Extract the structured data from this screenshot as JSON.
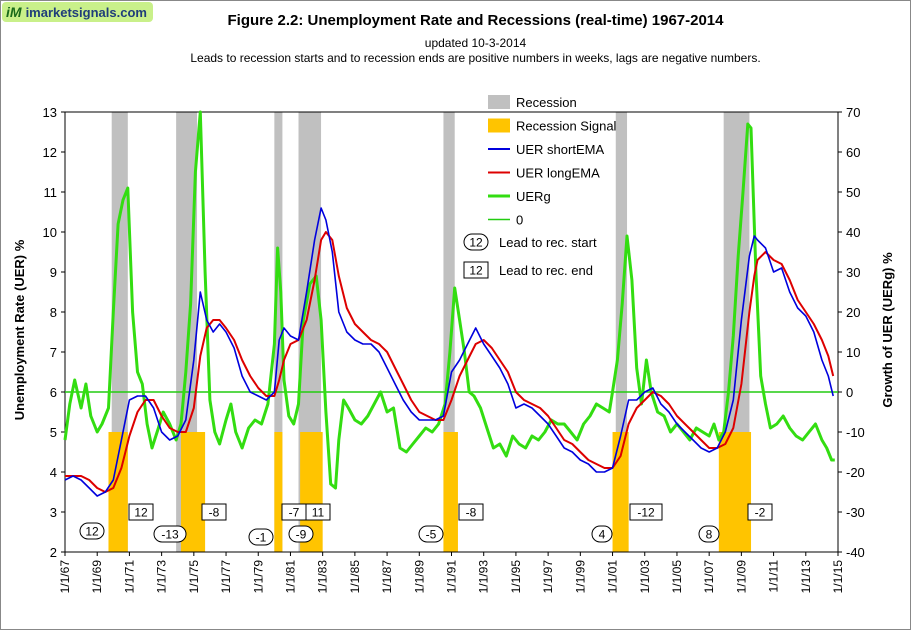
{
  "header": {
    "logo_text": "imarketsignals.com",
    "logo_mark": "iM",
    "title": "Figure 2.2:   Unemployment  Rate and Recessions  (real-time) 1967-2014",
    "subtitle1": "updated 10-3-2014",
    "subtitle2": "Leads to recession starts and to recession ends are positive numbers in weeks, lags are negative numbers."
  },
  "colors": {
    "recession": "#c0c0c0",
    "signal": "#ffc400",
    "short_ema": "#0000dd",
    "long_ema": "#dd0000",
    "uerg": "#33dd11",
    "zero": "#22cc11"
  },
  "chart_data": {
    "type": "line",
    "ylabel": "Unemployment Rate (UER) %",
    "y2label": "Growth of UER (UERg) %",
    "ylim": [
      2,
      13
    ],
    "y2lim": [
      -40,
      70
    ],
    "xlim": [
      1967.0,
      2015.0
    ],
    "yticks": [
      "2",
      "3",
      "4",
      "5",
      "6",
      "7",
      "8",
      "9",
      "10",
      "11",
      "12",
      "13"
    ],
    "y2ticks": [
      "-40",
      "-30",
      "-20",
      "-10",
      "0",
      "10",
      "20",
      "30",
      "40",
      "50",
      "60",
      "70"
    ],
    "xticks": [
      "1/1/67",
      "1/1/69",
      "1/1/71",
      "1/1/73",
      "1/1/75",
      "1/1/77",
      "1/1/79",
      "1/1/81",
      "1/1/83",
      "1/1/85",
      "1/1/87",
      "1/1/89",
      "1/1/91",
      "1/1/93",
      "1/1/95",
      "1/1/97",
      "1/1/99",
      "1/1/01",
      "1/1/03",
      "1/1/05",
      "1/1/07",
      "1/1/09",
      "1/1/11",
      "1/1/13",
      "1/1/15"
    ],
    "legend": [
      "Recession",
      "Recession Signal",
      "UER shortEMA",
      "UER longEMA",
      "UERg",
      "0"
    ],
    "legend_position": "top-center",
    "recessions": [
      [
        1969.9,
        1970.9
      ],
      [
        1973.9,
        1975.2
      ],
      [
        1980.0,
        1980.5
      ],
      [
        1981.5,
        1982.9
      ],
      [
        1990.5,
        1991.2
      ],
      [
        2001.2,
        2001.9
      ],
      [
        2007.9,
        2009.5
      ]
    ],
    "recession_signals": [
      [
        1969.7,
        1970.9
      ],
      [
        1974.2,
        1975.7
      ],
      [
        1980.0,
        1980.5
      ],
      [
        1981.6,
        1983.0
      ],
      [
        1990.5,
        1991.4
      ],
      [
        2001.0,
        2002.0
      ],
      [
        2007.6,
        2009.6
      ]
    ],
    "signal_level": 5.0,
    "uer_short_ema": {
      "x": [
        1967.0,
        1967.5,
        1968.0,
        1968.5,
        1969.0,
        1969.5,
        1970.0,
        1970.5,
        1971.0,
        1971.5,
        1972.0,
        1972.5,
        1973.0,
        1973.5,
        1974.0,
        1974.5,
        1975.0,
        1975.4,
        1975.8,
        1976.2,
        1976.6,
        1977.0,
        1977.5,
        1978.0,
        1978.5,
        1979.0,
        1979.5,
        1980.0,
        1980.3,
        1980.6,
        1981.0,
        1981.5,
        1982.0,
        1982.5,
        1982.9,
        1983.2,
        1983.6,
        1984.0,
        1984.5,
        1985.0,
        1985.5,
        1986.0,
        1986.5,
        1987.0,
        1987.5,
        1988.0,
        1988.5,
        1989.0,
        1989.5,
        1990.0,
        1990.5,
        1991.0,
        1991.5,
        1992.0,
        1992.5,
        1993.0,
        1993.5,
        1994.0,
        1994.5,
        1995.0,
        1995.5,
        1996.0,
        1996.5,
        1997.0,
        1997.5,
        1998.0,
        1998.5,
        1999.0,
        1999.5,
        2000.0,
        2000.5,
        2001.0,
        2001.5,
        2002.0,
        2002.5,
        2003.0,
        2003.5,
        2004.0,
        2004.5,
        2005.0,
        2005.5,
        2006.0,
        2006.5,
        2007.0,
        2007.5,
        2008.0,
        2008.5,
        2009.0,
        2009.5,
        2009.8,
        2010.0,
        2010.5,
        2011.0,
        2011.5,
        2012.0,
        2012.5,
        2013.0,
        2013.5,
        2014.0,
        2014.4,
        2014.7
      ],
      "y": [
        3.8,
        3.9,
        3.8,
        3.6,
        3.4,
        3.5,
        3.8,
        4.8,
        5.8,
        5.9,
        5.9,
        5.6,
        5.0,
        4.8,
        4.9,
        5.3,
        6.8,
        8.5,
        7.8,
        7.5,
        7.7,
        7.5,
        7.1,
        6.4,
        6.0,
        5.9,
        5.8,
        6.0,
        7.3,
        7.6,
        7.4,
        7.3,
        8.5,
        9.8,
        10.6,
        10.3,
        9.5,
        8.0,
        7.5,
        7.3,
        7.2,
        7.2,
        7.0,
        6.6,
        6.2,
        5.8,
        5.5,
        5.3,
        5.3,
        5.3,
        5.4,
        6.5,
        6.8,
        7.2,
        7.6,
        7.2,
        6.9,
        6.6,
        6.2,
        5.6,
        5.7,
        5.6,
        5.4,
        5.2,
        4.9,
        4.6,
        4.5,
        4.3,
        4.2,
        4.0,
        4.0,
        4.1,
        4.9,
        5.8,
        5.8,
        6.0,
        6.1,
        5.7,
        5.5,
        5.2,
        5.0,
        4.8,
        4.6,
        4.5,
        4.6,
        5.0,
        5.8,
        7.8,
        9.4,
        9.9,
        9.8,
        9.6,
        9.0,
        9.1,
        8.5,
        8.1,
        7.9,
        7.5,
        6.8,
        6.4,
        5.9
      ]
    },
    "uer_long_ema": {
      "x": [
        1967.0,
        1967.5,
        1968.0,
        1968.5,
        1969.0,
        1969.5,
        1970.0,
        1970.5,
        1971.0,
        1971.5,
        1972.0,
        1972.5,
        1973.0,
        1973.5,
        1974.0,
        1974.5,
        1975.0,
        1975.4,
        1975.8,
        1976.2,
        1976.6,
        1977.0,
        1977.5,
        1978.0,
        1978.5,
        1979.0,
        1979.5,
        1980.0,
        1980.3,
        1980.6,
        1981.0,
        1981.5,
        1982.0,
        1982.5,
        1982.9,
        1983.2,
        1983.6,
        1984.0,
        1984.5,
        1985.0,
        1985.5,
        1986.0,
        1986.5,
        1987.0,
        1987.5,
        1988.0,
        1988.5,
        1989.0,
        1989.5,
        1990.0,
        1990.5,
        1991.0,
        1991.5,
        1992.0,
        1992.5,
        1993.0,
        1993.5,
        1994.0,
        1994.5,
        1995.0,
        1995.5,
        1996.0,
        1996.5,
        1997.0,
        1997.5,
        1998.0,
        1998.5,
        1999.0,
        1999.5,
        2000.0,
        2000.5,
        2001.0,
        2001.5,
        2002.0,
        2002.5,
        2003.0,
        2003.5,
        2004.0,
        2004.5,
        2005.0,
        2005.5,
        2006.0,
        2006.5,
        2007.0,
        2007.5,
        2008.0,
        2008.5,
        2009.0,
        2009.5,
        2009.8,
        2010.0,
        2010.5,
        2011.0,
        2011.5,
        2012.0,
        2012.5,
        2013.0,
        2013.5,
        2014.0,
        2014.4,
        2014.7
      ],
      "y": [
        3.9,
        3.9,
        3.9,
        3.8,
        3.6,
        3.5,
        3.6,
        4.1,
        4.9,
        5.5,
        5.8,
        5.8,
        5.4,
        5.1,
        5.0,
        5.0,
        5.6,
        6.9,
        7.6,
        7.8,
        7.8,
        7.6,
        7.3,
        6.8,
        6.4,
        6.1,
        5.9,
        5.9,
        6.3,
        6.8,
        7.2,
        7.3,
        7.8,
        8.8,
        9.8,
        10.0,
        9.8,
        8.9,
        8.1,
        7.7,
        7.5,
        7.3,
        7.2,
        7.0,
        6.6,
        6.2,
        5.8,
        5.5,
        5.4,
        5.3,
        5.3,
        5.8,
        6.4,
        6.8,
        7.2,
        7.3,
        7.1,
        6.8,
        6.5,
        6.0,
        5.8,
        5.7,
        5.6,
        5.4,
        5.1,
        4.8,
        4.7,
        4.5,
        4.3,
        4.2,
        4.1,
        4.1,
        4.4,
        5.2,
        5.6,
        5.8,
        6.0,
        5.9,
        5.7,
        5.4,
        5.2,
        5.0,
        4.8,
        4.6,
        4.6,
        4.7,
        5.1,
        6.2,
        8.0,
        8.9,
        9.3,
        9.5,
        9.3,
        9.2,
        8.8,
        8.3,
        8.0,
        7.7,
        7.3,
        6.9,
        6.4
      ]
    },
    "uerg": {
      "x": [
        1967.0,
        1967.3,
        1967.6,
        1968.0,
        1968.3,
        1968.6,
        1969.0,
        1969.3,
        1969.7,
        1970.0,
        1970.3,
        1970.6,
        1970.9,
        1971.2,
        1971.5,
        1971.8,
        1972.1,
        1972.4,
        1972.8,
        1973.1,
        1973.5,
        1973.9,
        1974.2,
        1974.5,
        1974.8,
        1975.1,
        1975.4,
        1975.7,
        1976.0,
        1976.3,
        1976.6,
        1977.0,
        1977.3,
        1977.6,
        1978.0,
        1978.4,
        1978.8,
        1979.2,
        1979.6,
        1980.0,
        1980.2,
        1980.4,
        1980.6,
        1980.9,
        1981.2,
        1981.5,
        1981.8,
        1982.2,
        1982.6,
        1982.9,
        1983.2,
        1983.5,
        1983.8,
        1984.0,
        1984.3,
        1984.6,
        1985.0,
        1985.4,
        1985.8,
        1986.2,
        1986.6,
        1987.0,
        1987.4,
        1987.8,
        1988.2,
        1988.6,
        1989.0,
        1989.4,
        1989.8,
        1990.2,
        1990.6,
        1990.9,
        1991.2,
        1991.5,
        1991.8,
        1992.1,
        1992.4,
        1992.8,
        1993.2,
        1993.6,
        1994.0,
        1994.4,
        1994.8,
        1995.2,
        1995.6,
        1996.0,
        1996.4,
        1996.8,
        1997.2,
        1997.6,
        1998.0,
        1998.4,
        1998.8,
        1999.2,
        1999.6,
        2000.0,
        2000.4,
        2000.8,
        2001.0,
        2001.3,
        2001.6,
        2001.9,
        2002.2,
        2002.5,
        2002.8,
        2003.1,
        2003.4,
        2003.8,
        2004.2,
        2004.6,
        2005.0,
        2005.4,
        2005.8,
        2006.2,
        2006.6,
        2007.0,
        2007.3,
        2007.6,
        2007.9,
        2008.2,
        2008.5,
        2008.8,
        2009.1,
        2009.4,
        2009.6,
        2009.9,
        2010.2,
        2010.5,
        2010.8,
        2011.2,
        2011.6,
        2012.0,
        2012.4,
        2012.8,
        2013.2,
        2013.6,
        2014.0,
        2014.3,
        2014.6,
        2014.8
      ],
      "y": [
        -12,
        -3,
        3,
        -4,
        2,
        -6,
        -10,
        -8,
        -4,
        20,
        42,
        48,
        51,
        20,
        5,
        2,
        -8,
        -14,
        -9,
        -5,
        -8,
        -12,
        -8,
        5,
        22,
        55,
        70,
        30,
        -2,
        -10,
        -13,
        -7,
        -3,
        -10,
        -14,
        -9,
        -7,
        -8,
        -3,
        12,
        36,
        25,
        3,
        -6,
        -8,
        -3,
        18,
        27,
        29,
        18,
        -5,
        -23,
        -24,
        -12,
        -2,
        -4,
        -7,
        -8,
        -6,
        -3,
        0,
        -5,
        -4,
        -14,
        -15,
        -13,
        -11,
        -9,
        -10,
        -8,
        -3,
        10,
        26,
        18,
        10,
        0,
        -1,
        -4,
        -9,
        -14,
        -13,
        -16,
        -11,
        -13,
        -14,
        -11,
        -12,
        -10,
        -7,
        -8,
        -8,
        -10,
        -12,
        -8,
        -6,
        -3,
        -4,
        -5,
        0,
        8,
        22,
        39,
        28,
        6,
        -3,
        8,
        0,
        -5,
        -6,
        -10,
        -8,
        -10,
        -12,
        -9,
        -10,
        -11,
        -8,
        -12,
        -10,
        0,
        14,
        34,
        50,
        67,
        66,
        30,
        4,
        -3,
        -9,
        -8,
        -6,
        -9,
        -11,
        -12,
        -10,
        -8,
        -12,
        -14,
        -17,
        -17
      ]
    }
  }
}
